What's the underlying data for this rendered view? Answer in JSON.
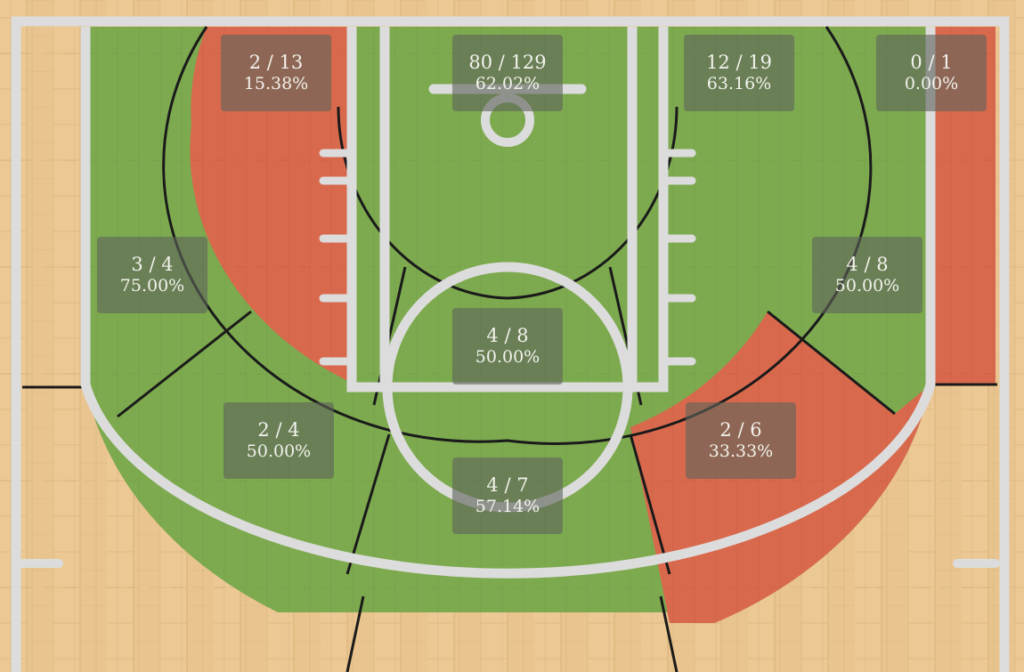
{
  "colors": {
    "hot": "#7daa4f",
    "cold": "#d9694d",
    "wood": "#e9c48e",
    "line": "#dcdcdc"
  },
  "zones": [
    {
      "id": "left-corner-three",
      "made_attempts": "0 / 1",
      "pct": "0.00%",
      "status": "cold"
    },
    {
      "id": "left-wing-three",
      "made_attempts": "4 / 8",
      "pct": "50.00%",
      "status": "hot"
    },
    {
      "id": "top-left-three",
      "made_attempts": "2 / 6",
      "pct": "33.33%",
      "status": "cold"
    },
    {
      "id": "top-three",
      "made_attempts": "4 / 7",
      "pct": "57.14%",
      "status": "hot"
    },
    {
      "id": "top-right-three",
      "made_attempts": "2 / 4",
      "pct": "50.00%",
      "status": "hot"
    },
    {
      "id": "right-wing-three",
      "made_attempts": "3 / 4",
      "pct": "75.00%",
      "status": "hot"
    },
    {
      "id": "right-corner-three",
      "made_attempts": "",
      "pct": "",
      "status": "hot"
    },
    {
      "id": "left-baseline-mid",
      "made_attempts": "12 / 19",
      "pct": "63.16%",
      "status": "hot"
    },
    {
      "id": "right-baseline-mid",
      "made_attempts": "2 / 13",
      "pct": "15.38%",
      "status": "cold"
    },
    {
      "id": "left-elbow-mid",
      "made_attempts": "",
      "pct": "",
      "status": "cold"
    },
    {
      "id": "right-elbow-mid",
      "made_attempts": "",
      "pct": "",
      "status": "hot"
    },
    {
      "id": "free-throw-mid",
      "made_attempts": "4 / 8",
      "pct": "50.00%",
      "status": "hot"
    },
    {
      "id": "restricted-area",
      "made_attempts": "80 / 129",
      "pct": "62.02%",
      "status": "hot"
    }
  ]
}
